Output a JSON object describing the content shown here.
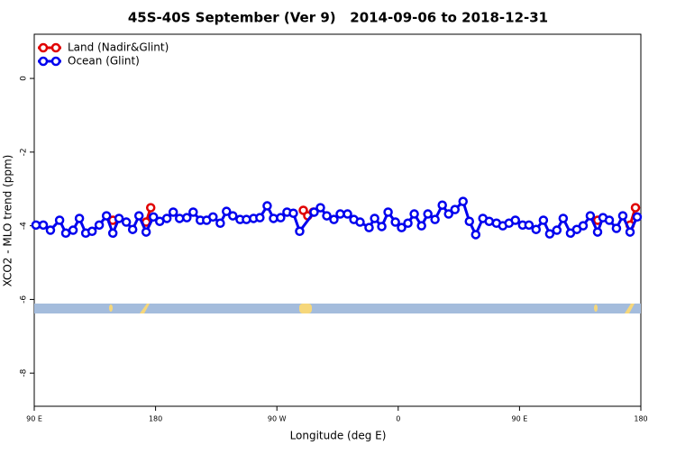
{
  "chart_data": {
    "type": "line",
    "title": "45S-40S September (Ver 9)   2014-09-06 to 2018-12-31",
    "x_label": "Longitude (deg E)",
    "y_label": "XCO2 - MLO trend (ppm)",
    "xlim": [
      90,
      540
    ],
    "ylim": [
      -8.9,
      1.2
    ],
    "xticks": [
      {
        "value": 90,
        "label": "90 E"
      },
      180,
      {
        "value": 270,
        "label": "90 W"
      },
      {
        "value": 360,
        "label": "0"
      },
      {
        "value": 450,
        "label": "90 E"
      },
      {
        "value": 540,
        "label": "180"
      }
    ],
    "yticks": [
      0,
      -2,
      -4,
      -6,
      -8
    ],
    "legend": "top-left",
    "series": [
      {
        "name": "Land (Nadir&Glint)",
        "color": "#e00000",
        "x": [
          148.3,
          null,
          173,
          176.4,
          null,
          289.6,
          292.9,
          297,
          null,
          508,
          null,
          532,
          536
        ],
        "values": [
          -3.85,
          null,
          -3.9,
          -3.51,
          null,
          -3.58,
          -3.73,
          -3.63,
          null,
          -3.85,
          null,
          -3.98,
          -3.51
        ]
      },
      {
        "name": "Ocean (Glint)",
        "color": "#0000ee",
        "x": [
          91.3,
          96.7,
          102,
          108.8,
          113.4,
          118.8,
          123.5,
          128.2,
          132.9,
          138.2,
          143.6,
          148.3,
          152.9,
          158.3,
          163,
          167.7,
          173,
          178.4,
          183.1,
          188.4,
          193.1,
          197.8,
          203.2,
          207.9,
          213.2,
          217.9,
          222.6,
          228,
          232.6,
          237.3,
          242.7,
          247.4,
          252.7,
          257.4,
          262.8,
          267.5,
          272.8,
          277.5,
          282.2,
          286.9,
          297.6,
          302.3,
          307,
          312.3,
          317,
          322.4,
          327.1,
          331.7,
          338.4,
          342.5,
          347.8,
          352.5,
          357.9,
          362.5,
          367.2,
          371.9,
          377.3,
          382,
          387.3,
          392.7,
          397.4,
          402.1,
          408.1,
          412.8,
          417.5,
          422.8,
          427.5,
          432.9,
          437.6,
          442.2,
          446.9,
          452.3,
          457,
          462.3,
          467.7,
          472.4,
          477.7,
          482.4,
          487.8,
          492.5,
          497.2,
          502.5,
          507.9,
          511.9,
          516.6,
          521.9,
          526.6,
          532,
          537.3
        ],
        "values": [
          -3.98,
          -3.98,
          -4.12,
          -3.85,
          -4.2,
          -4.12,
          -3.8,
          -4.2,
          -4.15,
          -3.98,
          -3.73,
          -4.2,
          -3.8,
          -3.9,
          -4.1,
          -3.73,
          -4.17,
          -3.76,
          -3.88,
          -3.8,
          -3.63,
          -3.8,
          -3.78,
          -3.63,
          -3.85,
          -3.85,
          -3.76,
          -3.93,
          -3.61,
          -3.73,
          -3.83,
          -3.83,
          -3.8,
          -3.78,
          -3.46,
          -3.8,
          -3.78,
          -3.63,
          -3.66,
          -4.15,
          -3.63,
          -3.51,
          -3.73,
          -3.83,
          -3.68,
          -3.68,
          -3.83,
          -3.9,
          -4.05,
          -3.8,
          -4.02,
          -3.63,
          -3.9,
          -4.05,
          -3.93,
          -3.68,
          -4.0,
          -3.68,
          -3.83,
          -3.44,
          -3.68,
          -3.56,
          -3.34,
          -3.88,
          -4.24,
          -3.8,
          -3.88,
          -3.93,
          -4.0,
          -3.93,
          -3.85,
          -3.98,
          -3.98,
          -4.1,
          -3.85,
          -4.22,
          -4.12,
          -3.8,
          -4.2,
          -4.1,
          -4.0,
          -3.73,
          -4.17,
          -3.78,
          -3.85,
          -4.07,
          -3.73,
          -4.17,
          -3.76
        ]
      }
    ]
  }
}
